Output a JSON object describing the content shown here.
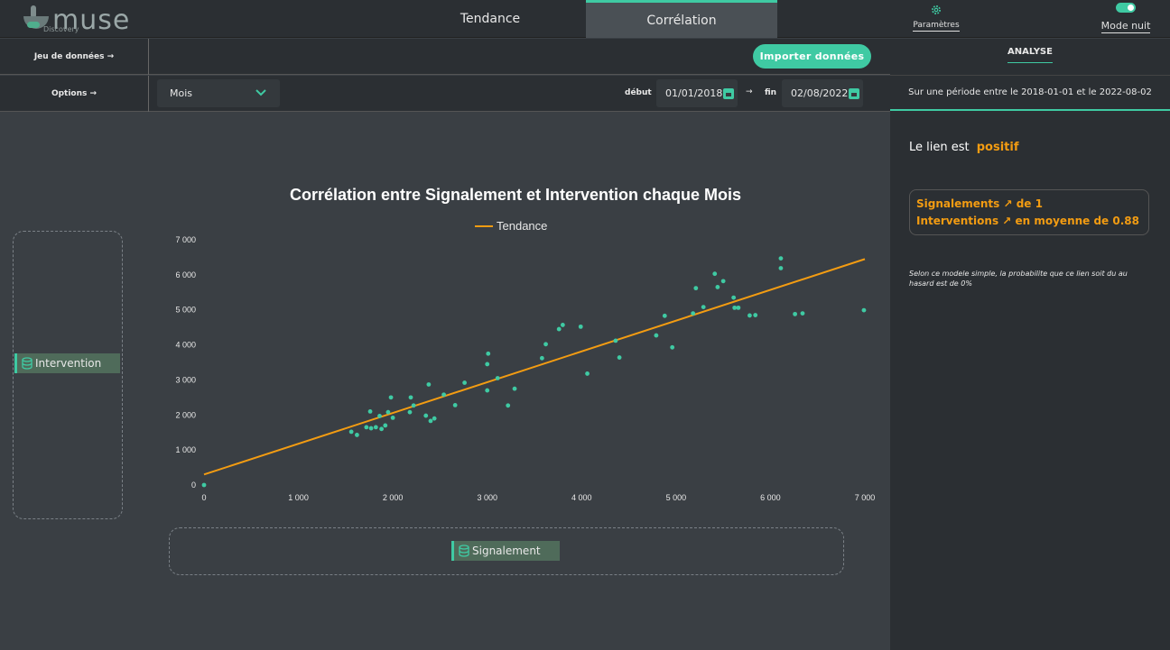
{
  "app": {
    "logo": "muse",
    "logo_sub": "Discovery"
  },
  "tabs": [
    {
      "label": "Tendance"
    },
    {
      "label": "Corrélation"
    }
  ],
  "header": {
    "settings": "Paramètres",
    "night_mode": "Mode nuit",
    "night_mode_on": true
  },
  "toolbar": {
    "dataset_label": "Jeu de données →",
    "options_label": "Options →",
    "import_button": "Importer données",
    "period_select": "Mois",
    "start_label": "début",
    "start_date": "01/01/2018",
    "arrow": "→",
    "end_label": "fin",
    "end_date": "02/08/2022"
  },
  "fields": {
    "y_chip": "Intervention",
    "x_chip": "Signalement"
  },
  "analysis": {
    "tab": "ANALYSE",
    "period_text": "Sur une période entre le 2018-01-01 et le 2022-08-02",
    "link_prefix": "Le lien est",
    "link_value": "positif",
    "line1": "Signalements ↗ de 1",
    "line2": "Interventions ↗ en moyenne de 0.88",
    "note": "Selon ce modele simple, la probabilite que ce lien soit du au hasard est de 0%"
  },
  "colors": {
    "accent": "#3fcaa3",
    "trend": "#f39c12",
    "point": "#3fcaa3"
  },
  "chart_data": {
    "type": "scatter",
    "title": "Corrélation entre Signalement et Intervention chaque Mois",
    "legend": [
      "Tendance"
    ],
    "legend_position": "top",
    "xlim": [
      0,
      7000
    ],
    "ylim": [
      0,
      7000
    ],
    "x_ticks": [
      "0",
      "1 000",
      "2 000",
      "3 000",
      "4 000",
      "5 000",
      "6 000",
      "7 000"
    ],
    "y_ticks": [
      "0",
      "1 000",
      "2 000",
      "3 000",
      "4 000",
      "5 000",
      "6 000",
      "7 000"
    ],
    "grid": false,
    "trend": {
      "x": [
        0,
        7000
      ],
      "y": [
        300,
        6450
      ]
    },
    "points": [
      [
        0,
        0
      ],
      [
        1560,
        1520
      ],
      [
        1620,
        1430
      ],
      [
        1720,
        1650
      ],
      [
        1760,
        2100
      ],
      [
        1770,
        1620
      ],
      [
        1820,
        1650
      ],
      [
        1860,
        1970
      ],
      [
        1880,
        1600
      ],
      [
        1920,
        1700
      ],
      [
        1950,
        2080
      ],
      [
        1980,
        2500
      ],
      [
        2000,
        1920
      ],
      [
        2180,
        2080
      ],
      [
        2190,
        2500
      ],
      [
        2220,
        2270
      ],
      [
        2350,
        1980
      ],
      [
        2380,
        2870
      ],
      [
        2400,
        1830
      ],
      [
        2440,
        1900
      ],
      [
        2540,
        2580
      ],
      [
        2660,
        2280
      ],
      [
        2760,
        2920
      ],
      [
        3000,
        2700
      ],
      [
        3000,
        3450
      ],
      [
        3010,
        3750
      ],
      [
        3110,
        3050
      ],
      [
        3220,
        2270
      ],
      [
        3290,
        2750
      ],
      [
        3580,
        3620
      ],
      [
        3620,
        4020
      ],
      [
        3760,
        4450
      ],
      [
        3800,
        4570
      ],
      [
        3990,
        4520
      ],
      [
        4060,
        3180
      ],
      [
        4360,
        4120
      ],
      [
        4400,
        3640
      ],
      [
        4790,
        4270
      ],
      [
        4880,
        4830
      ],
      [
        4960,
        3930
      ],
      [
        5180,
        4900
      ],
      [
        5210,
        5620
      ],
      [
        5290,
        5080
      ],
      [
        5410,
        6030
      ],
      [
        5440,
        5650
      ],
      [
        5500,
        5820
      ],
      [
        5610,
        5350
      ],
      [
        5620,
        5060
      ],
      [
        5660,
        5060
      ],
      [
        5780,
        4840
      ],
      [
        5840,
        4850
      ],
      [
        6110,
        6470
      ],
      [
        6110,
        6190
      ],
      [
        6260,
        4880
      ],
      [
        6340,
        4900
      ],
      [
        6990,
        4990
      ]
    ]
  }
}
